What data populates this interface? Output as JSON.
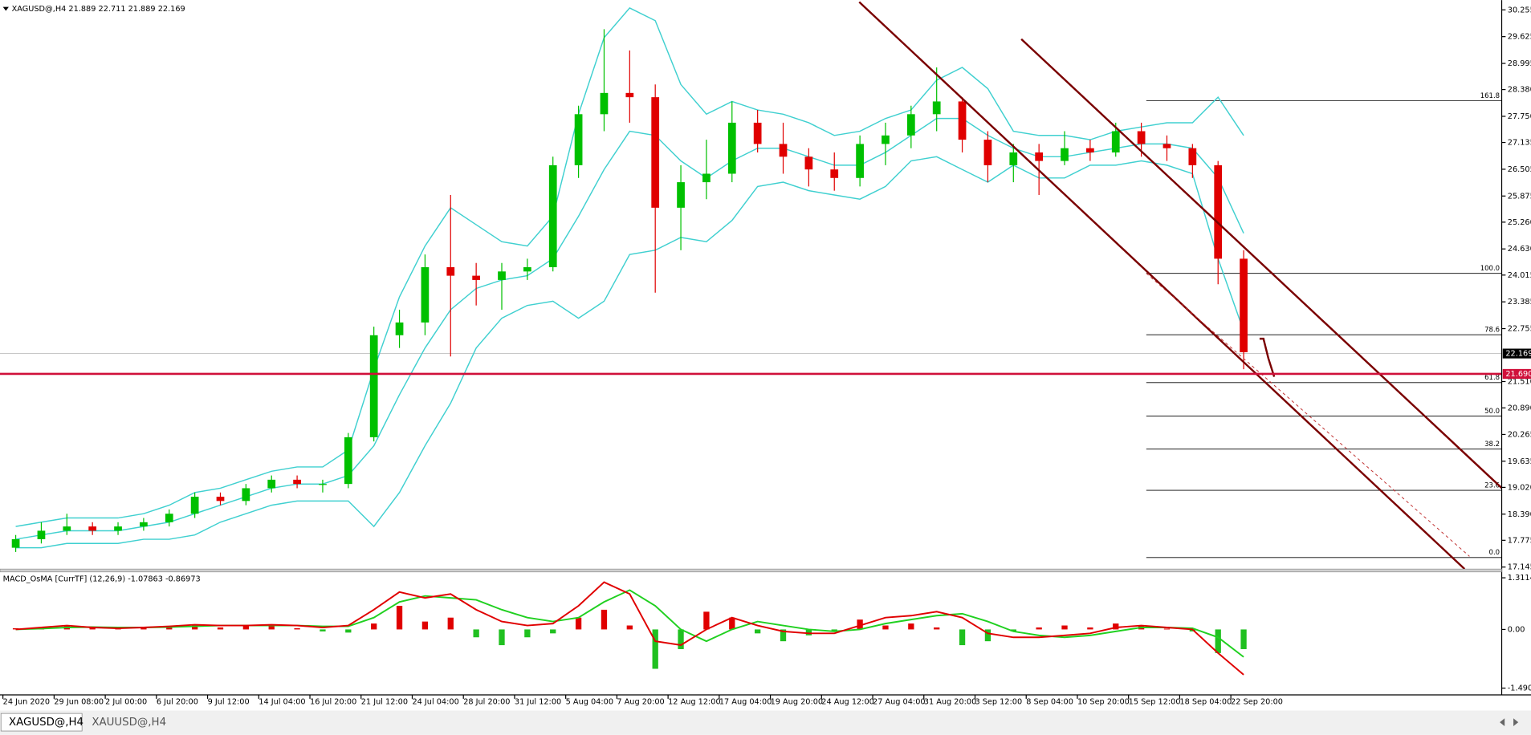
{
  "header": "XAGUSD@,H4  21.889 22.711 21.889 22.169",
  "chart_data": {
    "type": "candlestick",
    "up_color": "#00c000",
    "down_color": "#e00000",
    "x_labels": [
      "24 Jun 2020",
      "29 Jun 08:00",
      "2 Jul 00:00",
      "6 Jul 20:00",
      "9 Jul 12:00",
      "14 Jul 04:00",
      "16 Jul 20:00",
      "21 Jul 12:00",
      "24 Jul 04:00",
      "28 Jul 20:00",
      "31 Jul 12:00",
      "5 Aug 04:00",
      "7 Aug 20:00",
      "12 Aug 12:00",
      "17 Aug 04:00",
      "19 Aug 20:00",
      "24 Aug 12:00",
      "27 Aug 04:00",
      "31 Aug 20:00",
      "3 Sep 12:00",
      "8 Sep 04:00",
      "10 Sep 20:00",
      "15 Sep 12:00",
      "18 Sep 04:00",
      "22 Sep 20:00"
    ],
    "open": [
      17.6,
      17.8,
      18.0,
      18.1,
      18.0,
      18.1,
      18.2,
      18.4,
      18.8,
      18.7,
      19.0,
      19.2,
      19.1,
      19.1,
      20.2,
      22.6,
      22.9,
      24.2,
      24.0,
      23.9,
      24.1,
      24.2,
      26.6,
      27.8,
      28.3,
      28.2,
      25.6,
      26.2,
      26.4,
      27.6,
      27.1,
      26.8,
      26.5,
      26.3,
      27.1,
      27.3,
      27.8,
      28.1,
      27.2,
      26.6,
      26.9,
      26.7,
      27.0,
      26.9,
      27.4,
      27.1,
      27.0,
      26.6,
      24.4
    ],
    "high": [
      17.9,
      18.2,
      18.4,
      18.2,
      18.2,
      18.3,
      18.5,
      18.9,
      18.9,
      19.1,
      19.3,
      19.3,
      19.2,
      20.3,
      22.8,
      23.2,
      24.5,
      25.9,
      24.3,
      24.3,
      24.4,
      26.8,
      28.0,
      29.8,
      29.3,
      28.5,
      26.6,
      27.2,
      28.1,
      27.9,
      27.6,
      27.0,
      26.9,
      27.3,
      27.6,
      28.0,
      28.9,
      28.2,
      27.4,
      27.1,
      27.1,
      27.4,
      27.2,
      27.6,
      27.6,
      27.3,
      27.1,
      26.7,
      24.6
    ],
    "low": [
      17.5,
      17.7,
      17.9,
      17.9,
      17.9,
      18.0,
      18.1,
      18.3,
      18.6,
      18.6,
      18.9,
      19.0,
      18.9,
      19.0,
      20.1,
      22.3,
      22.6,
      22.1,
      23.3,
      23.2,
      23.9,
      24.1,
      26.3,
      27.4,
      27.6,
      23.6,
      24.6,
      25.8,
      26.2,
      26.9,
      26.4,
      26.1,
      26.0,
      26.1,
      26.6,
      27.0,
      27.4,
      26.9,
      26.2,
      26.2,
      25.9,
      26.6,
      26.7,
      26.8,
      26.8,
      26.7,
      26.3,
      23.8,
      21.8
    ],
    "close": [
      17.8,
      18.0,
      18.1,
      18.0,
      18.1,
      18.2,
      18.4,
      18.8,
      18.7,
      19.0,
      19.2,
      19.1,
      19.1,
      20.2,
      22.6,
      22.9,
      24.2,
      24.0,
      23.9,
      24.1,
      24.2,
      26.6,
      27.8,
      28.3,
      28.2,
      25.6,
      26.2,
      26.4,
      27.6,
      27.1,
      26.8,
      26.5,
      26.3,
      27.1,
      27.3,
      27.8,
      28.1,
      27.2,
      26.6,
      26.9,
      26.7,
      27.0,
      26.9,
      27.4,
      27.1,
      27.0,
      26.6,
      24.4,
      22.2
    ],
    "bands": {
      "color": "#40d0d0",
      "upper": [
        18.1,
        18.2,
        18.3,
        18.3,
        18.3,
        18.4,
        18.6,
        18.9,
        19.0,
        19.2,
        19.4,
        19.5,
        19.5,
        19.9,
        21.8,
        23.5,
        24.7,
        25.6,
        25.2,
        24.8,
        24.7,
        25.4,
        27.8,
        29.6,
        30.3,
        30.0,
        28.5,
        27.8,
        28.1,
        27.9,
        27.8,
        27.6,
        27.3,
        27.4,
        27.7,
        27.9,
        28.6,
        28.9,
        28.4,
        27.4,
        27.3,
        27.3,
        27.2,
        27.4,
        27.5,
        27.6,
        27.6,
        28.2,
        27.3
      ],
      "middle": [
        17.8,
        17.9,
        18.0,
        18.0,
        18.0,
        18.1,
        18.2,
        18.4,
        18.6,
        18.8,
        19.0,
        19.1,
        19.1,
        19.3,
        20.0,
        21.2,
        22.3,
        23.2,
        23.7,
        23.9,
        24.0,
        24.4,
        25.4,
        26.5,
        27.4,
        27.3,
        26.7,
        26.3,
        26.7,
        27.0,
        27.0,
        26.8,
        26.6,
        26.6,
        26.9,
        27.3,
        27.7,
        27.7,
        27.3,
        27.0,
        26.8,
        26.8,
        26.9,
        27.0,
        27.1,
        27.1,
        27.0,
        26.3,
        25.0
      ],
      "lower": [
        17.6,
        17.6,
        17.7,
        17.7,
        17.7,
        17.8,
        17.8,
        17.9,
        18.2,
        18.4,
        18.6,
        18.7,
        18.7,
        18.7,
        18.1,
        18.9,
        20.0,
        21.0,
        22.3,
        23.0,
        23.3,
        23.4,
        23.0,
        23.4,
        24.5,
        24.6,
        24.9,
        24.8,
        25.3,
        26.1,
        26.2,
        26.0,
        25.9,
        25.8,
        26.1,
        26.7,
        26.8,
        26.5,
        26.2,
        26.6,
        26.3,
        26.3,
        26.6,
        26.6,
        26.7,
        26.6,
        26.4,
        24.4,
        22.7
      ]
    },
    "ylim": [
      17.099,
      30.485
    ],
    "yticks": [
      30.255,
      29.625,
      28.995,
      {
        "value": 28.38,
        "label": "28.380"
      },
      {
        "value": 27.75,
        "label": "27.750"
      },
      27.135,
      26.505,
      25.875,
      {
        "value": 25.26,
        "label": "25.260"
      },
      {
        "value": 24.63,
        "label": "24.630"
      },
      24.015,
      23.385,
      22.755,
      {
        "value": 21.51,
        "label": "21.510"
      },
      {
        "value": 20.89,
        "label": "20.890"
      },
      20.265,
      19.635,
      {
        "value": 19.02,
        "label": "19.020"
      },
      {
        "value": 18.39,
        "label": "18.390"
      },
      17.775,
      17.145
    ],
    "current_price": 22.169,
    "level_line": {
      "value": 21.69,
      "label": "21.690",
      "color": "#d0103a"
    },
    "fibonacci": [
      {
        "label": "161.8",
        "price": 28.12
      },
      {
        "label": "100.0",
        "price": 24.055
      },
      {
        "label": "78.6",
        "price": 22.61
      },
      {
        "label": "61.8",
        "price": 21.485
      },
      {
        "label": "50.0",
        "price": 20.7
      },
      {
        "label": "38.2",
        "price": 19.92
      },
      {
        "label": "23.6",
        "price": 18.95
      },
      {
        "label": "0.0",
        "price": 17.37
      }
    ],
    "indicator": {
      "title": "MACD_OsMA [CurrTF] (12,26,9) -1.07863 -0.86973",
      "histogram": [
        0.03,
        0.05,
        0.08,
        0.04,
        0.02,
        0.05,
        0.06,
        0.1,
        0.05,
        0.08,
        0.1,
        0.03,
        -0.05,
        -0.08,
        0.15,
        0.6,
        0.2,
        0.3,
        -0.2,
        -0.4,
        -0.2,
        -0.1,
        0.3,
        0.5,
        0.1,
        -1.0,
        -0.5,
        0.45,
        0.3,
        -0.1,
        -0.3,
        -0.15,
        -0.05,
        0.25,
        0.1,
        0.15,
        0.05,
        -0.4,
        -0.3,
        -0.05,
        0.05,
        0.1,
        0.05,
        0.15,
        0.1,
        0.02,
        -0.05,
        -0.6,
        -0.5
      ],
      "macd": {
        "color": "#e00000",
        "values": [
          0.0,
          0.05,
          0.1,
          0.05,
          0.03,
          0.05,
          0.08,
          0.12,
          0.1,
          0.1,
          0.12,
          0.1,
          0.05,
          0.1,
          0.5,
          0.95,
          0.8,
          0.9,
          0.5,
          0.2,
          0.1,
          0.15,
          0.6,
          1.2,
          0.9,
          -0.3,
          -0.4,
          0.0,
          0.3,
          0.1,
          -0.05,
          -0.1,
          -0.1,
          0.1,
          0.3,
          0.35,
          0.45,
          0.3,
          -0.1,
          -0.2,
          -0.2,
          -0.15,
          -0.1,
          0.05,
          0.1,
          0.05,
          0.0,
          -0.6,
          -1.15
        ]
      },
      "signal": {
        "color": "#20d020",
        "values": [
          0.0,
          0.02,
          0.05,
          0.06,
          0.05,
          0.05,
          0.06,
          0.08,
          0.1,
          0.1,
          0.1,
          0.1,
          0.08,
          0.08,
          0.3,
          0.7,
          0.85,
          0.8,
          0.75,
          0.5,
          0.3,
          0.2,
          0.3,
          0.7,
          1.0,
          0.6,
          0.0,
          -0.3,
          0.0,
          0.2,
          0.1,
          0.0,
          -0.05,
          0.0,
          0.15,
          0.25,
          0.35,
          0.4,
          0.2,
          -0.05,
          -0.15,
          -0.2,
          -0.15,
          -0.05,
          0.05,
          0.05,
          0.03,
          -0.2,
          -0.7
        ]
      },
      "ylim": [
        -1.663,
        1.46
      ],
      "yticks": [
        1.31147,
        {
          "value": 0,
          "label": "0.00"
        },
        -1.4903
      ]
    }
  },
  "tabs": [
    "XAGUSD@,H4",
    "XAUUSD@,H4"
  ]
}
